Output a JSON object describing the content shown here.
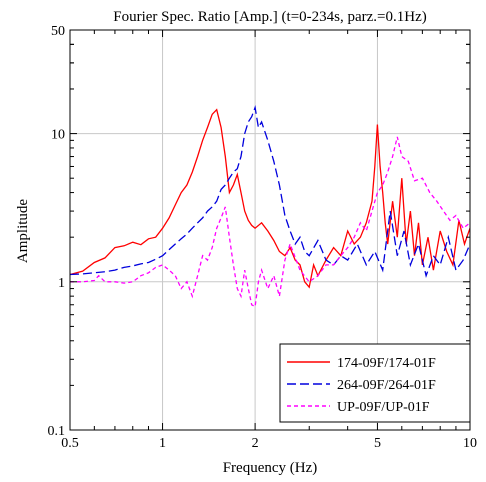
{
  "chart_data": {
    "type": "line",
    "title": "Fourier Spec. Ratio [Amp.] (t=0-234s, parz.=0.1Hz)",
    "xlabel": "Frequency (Hz)",
    "ylabel": "Amplitude",
    "xscale": "log",
    "yscale": "log",
    "xlim": [
      0.5,
      10
    ],
    "ylim": [
      0.1,
      50
    ],
    "xticks": [
      0.5,
      1,
      2,
      5,
      10
    ],
    "xtick_labels": [
      "0.5",
      "1",
      "2",
      "5",
      "10"
    ],
    "yticks": [
      0.1,
      1,
      10,
      50
    ],
    "ytick_labels": [
      "0.1",
      "1",
      "10",
      "50"
    ],
    "grid": true,
    "legend_position": "bottom-right",
    "series": [
      {
        "name": "174-09F/174-01F",
        "color": "#ff0000",
        "dash": "solid",
        "x": [
          0.5,
          0.55,
          0.6,
          0.65,
          0.7,
          0.75,
          0.8,
          0.85,
          0.9,
          0.95,
          1.0,
          1.05,
          1.1,
          1.15,
          1.2,
          1.25,
          1.3,
          1.35,
          1.4,
          1.45,
          1.5,
          1.55,
          1.6,
          1.65,
          1.7,
          1.75,
          1.8,
          1.85,
          1.9,
          1.95,
          2.0,
          2.1,
          2.2,
          2.3,
          2.4,
          2.5,
          2.6,
          2.7,
          2.8,
          2.9,
          3.0,
          3.1,
          3.2,
          3.4,
          3.6,
          3.8,
          4.0,
          4.2,
          4.4,
          4.6,
          4.8,
          4.9,
          5.0,
          5.1,
          5.2,
          5.3,
          5.4,
          5.6,
          5.8,
          6.0,
          6.2,
          6.4,
          6.6,
          6.8,
          7.0,
          7.3,
          7.6,
          8.0,
          8.4,
          8.8,
          9.2,
          9.6,
          10.0
        ],
        "y": [
          1.12,
          1.18,
          1.35,
          1.45,
          1.7,
          1.75,
          1.85,
          1.78,
          1.95,
          2.0,
          2.3,
          2.7,
          3.3,
          4.0,
          4.5,
          5.5,
          7.0,
          9.0,
          11.0,
          13.5,
          14.5,
          11.0,
          7.0,
          4.0,
          4.5,
          5.3,
          4.0,
          3.0,
          2.6,
          2.4,
          2.3,
          2.5,
          2.2,
          1.9,
          1.6,
          1.5,
          1.7,
          1.4,
          1.3,
          1.0,
          0.92,
          1.3,
          1.1,
          1.4,
          1.7,
          1.5,
          2.2,
          1.8,
          2.0,
          2.5,
          3.5,
          6.0,
          11.5,
          6.0,
          4.0,
          2.5,
          1.8,
          3.5,
          2.0,
          5.0,
          1.8,
          3.0,
          1.5,
          2.5,
          1.3,
          2.0,
          1.2,
          2.2,
          1.6,
          1.3,
          2.6,
          1.8,
          2.3
        ]
      },
      {
        "name": "264-09F/264-01F",
        "color": "#0000dd",
        "dash": "long-dash",
        "x": [
          0.5,
          0.55,
          0.6,
          0.65,
          0.7,
          0.75,
          0.8,
          0.85,
          0.9,
          0.95,
          1.0,
          1.05,
          1.1,
          1.15,
          1.2,
          1.25,
          1.3,
          1.35,
          1.4,
          1.45,
          1.5,
          1.55,
          1.6,
          1.65,
          1.7,
          1.75,
          1.8,
          1.85,
          1.9,
          1.95,
          2.0,
          2.05,
          2.1,
          2.2,
          2.3,
          2.4,
          2.5,
          2.6,
          2.7,
          2.8,
          2.9,
          3.0,
          3.2,
          3.4,
          3.6,
          3.8,
          4.0,
          4.3,
          4.6,
          4.9,
          5.2,
          5.5,
          5.8,
          6.1,
          6.4,
          6.8,
          7.2,
          7.6,
          8.0,
          8.5,
          9.0,
          9.5,
          10.0
        ],
        "y": [
          1.12,
          1.13,
          1.15,
          1.17,
          1.2,
          1.25,
          1.28,
          1.32,
          1.35,
          1.42,
          1.5,
          1.65,
          1.8,
          1.95,
          2.1,
          2.3,
          2.5,
          2.7,
          3.0,
          3.2,
          3.5,
          4.2,
          4.5,
          5.0,
          5.5,
          5.8,
          7.0,
          10.0,
          12.0,
          13.0,
          15.0,
          11.0,
          12.0,
          9.0,
          6.5,
          4.5,
          2.8,
          2.2,
          1.8,
          2.0,
          1.6,
          1.5,
          1.9,
          1.4,
          1.3,
          1.5,
          1.4,
          1.8,
          1.3,
          1.6,
          1.2,
          3.0,
          1.5,
          2.2,
          1.3,
          1.8,
          1.1,
          1.5,
          1.3,
          2.0,
          1.2,
          1.4,
          1.8
        ]
      },
      {
        "name": "UP-09F/UP-01F",
        "color": "#ff00ff",
        "dash": "short-dash",
        "x": [
          0.5,
          0.55,
          0.6,
          0.62,
          0.65,
          0.7,
          0.75,
          0.8,
          0.85,
          0.9,
          0.95,
          1.0,
          1.05,
          1.1,
          1.15,
          1.2,
          1.25,
          1.3,
          1.35,
          1.4,
          1.45,
          1.5,
          1.55,
          1.6,
          1.65,
          1.7,
          1.75,
          1.8,
          1.85,
          1.9,
          1.95,
          2.0,
          2.05,
          2.1,
          2.2,
          2.3,
          2.4,
          2.5,
          2.6,
          2.8,
          3.0,
          3.2,
          3.4,
          3.6,
          3.8,
          4.0,
          4.2,
          4.4,
          4.6,
          4.8,
          5.0,
          5.2,
          5.4,
          5.6,
          5.8,
          6.0,
          6.3,
          6.6,
          7.0,
          7.4,
          7.8,
          8.2,
          8.6,
          9.0,
          9.5,
          10.0
        ],
        "y": [
          1.0,
          1.0,
          1.02,
          1.1,
          1.0,
          1.0,
          0.98,
          1.0,
          1.1,
          1.15,
          1.25,
          1.3,
          1.2,
          1.1,
          0.9,
          1.0,
          0.8,
          1.1,
          1.5,
          1.4,
          1.7,
          2.3,
          2.7,
          3.2,
          2.0,
          1.3,
          0.9,
          0.8,
          1.2,
          0.9,
          0.7,
          0.68,
          1.0,
          1.2,
          0.9,
          1.1,
          0.8,
          1.4,
          1.8,
          1.2,
          1.0,
          1.1,
          1.3,
          1.3,
          1.5,
          1.7,
          2.0,
          2.5,
          2.2,
          3.0,
          4.0,
          4.5,
          5.5,
          7.0,
          9.5,
          7.0,
          6.5,
          4.8,
          5.0,
          4.0,
          3.5,
          3.0,
          2.6,
          2.8,
          2.3,
          2.5
        ]
      }
    ]
  }
}
